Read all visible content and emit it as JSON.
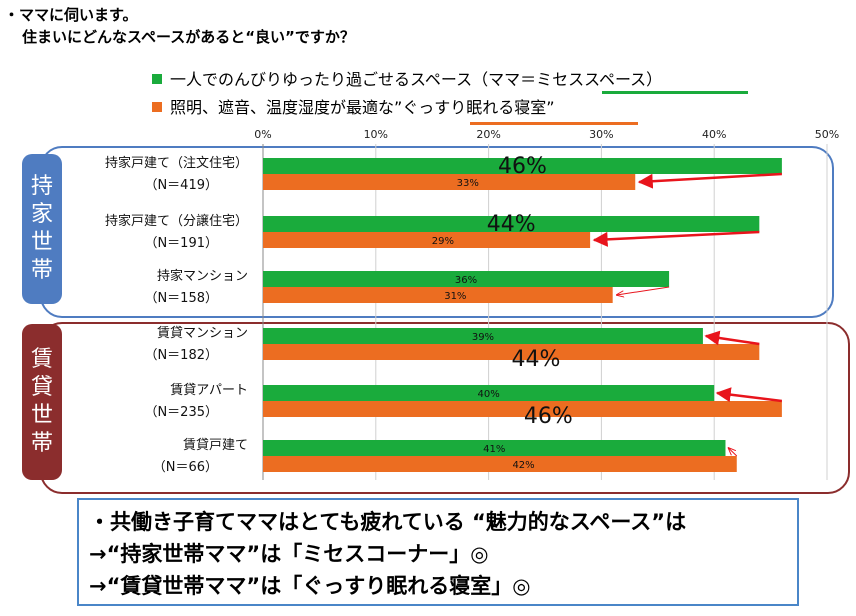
{
  "header": {
    "line1": "・ママに伺います。",
    "line2": "住まいにどんなスペースがあると“良い”ですか？"
  },
  "colors": {
    "series1": "#1aab3c",
    "series2": "#ec6d21",
    "group_owned": "#4f7cc1",
    "group_rented": "#8b2d2d",
    "arrow": "#e8141c",
    "note_border": "#4a86c8"
  },
  "chart_data": {
    "type": "bar",
    "orientation": "horizontal",
    "xlim": [
      0,
      50
    ],
    "xticks": [
      "0%",
      "10%",
      "20%",
      "30%",
      "40%",
      "50%"
    ],
    "legend_position": "top",
    "series": [
      {
        "name": "一人でのんびりゆったり過ごせるスペース（ママ＝ミセススペース）",
        "values": [
          46,
          44,
          36,
          39,
          40,
          41
        ]
      },
      {
        "name": "照明、遮音、温度湿度が最適な”ぐっすり眠れる寝室”",
        "values": [
          33,
          29,
          31,
          44,
          46,
          42
        ]
      }
    ],
    "categories": [
      {
        "name": "持家戸建て（注文住宅）",
        "n": "（N＝419）"
      },
      {
        "name": "持家戸建て（分譲住宅）",
        "n": "（N＝191）"
      },
      {
        "name": "持家マンション",
        "n": "（N＝158）"
      },
      {
        "name": "賃貸マンション",
        "n": "（N＝182）"
      },
      {
        "name": "賃貸アパート",
        "n": "（N＝235）"
      },
      {
        "name": "賃貸戸建て",
        "n": "（N＝66）"
      }
    ],
    "labels": [
      {
        "s1": "46%",
        "s2": "33%"
      },
      {
        "s1": "44%",
        "s2": "29%"
      },
      {
        "s1": "36%",
        "s2": "31%"
      },
      {
        "s1": "39%",
        "s2": "44%"
      },
      {
        "s1": "40%",
        "s2": "46%"
      },
      {
        "s1": "41%",
        "s2": "42%"
      }
    ],
    "emphasized_labels": [
      "46%",
      "44%",
      "44%",
      "46%"
    ],
    "groups": [
      {
        "name": "持家世帯",
        "chars": [
          "持",
          "家",
          "世",
          "帯"
        ]
      },
      {
        "name": "賃貸世帯",
        "chars": [
          "賃",
          "貸",
          "世",
          "帯"
        ]
      }
    ]
  },
  "legend": {
    "item1": "一人でのんびりゆったり過ごせるスペース（ママ＝ミセススペース）",
    "item2": "照明、遮音、温度湿度が最適な”ぐっすり眠れる寝室”"
  },
  "notes": {
    "line1": "・共働き子育てママはとても疲れている “魅力的なスペース”は",
    "line2": "→“持家世帯ママ”は「ミセスコーナー」◎",
    "line3": "→“賃貸世帯ママ”は「ぐっすり眠れる寝室」◎"
  }
}
